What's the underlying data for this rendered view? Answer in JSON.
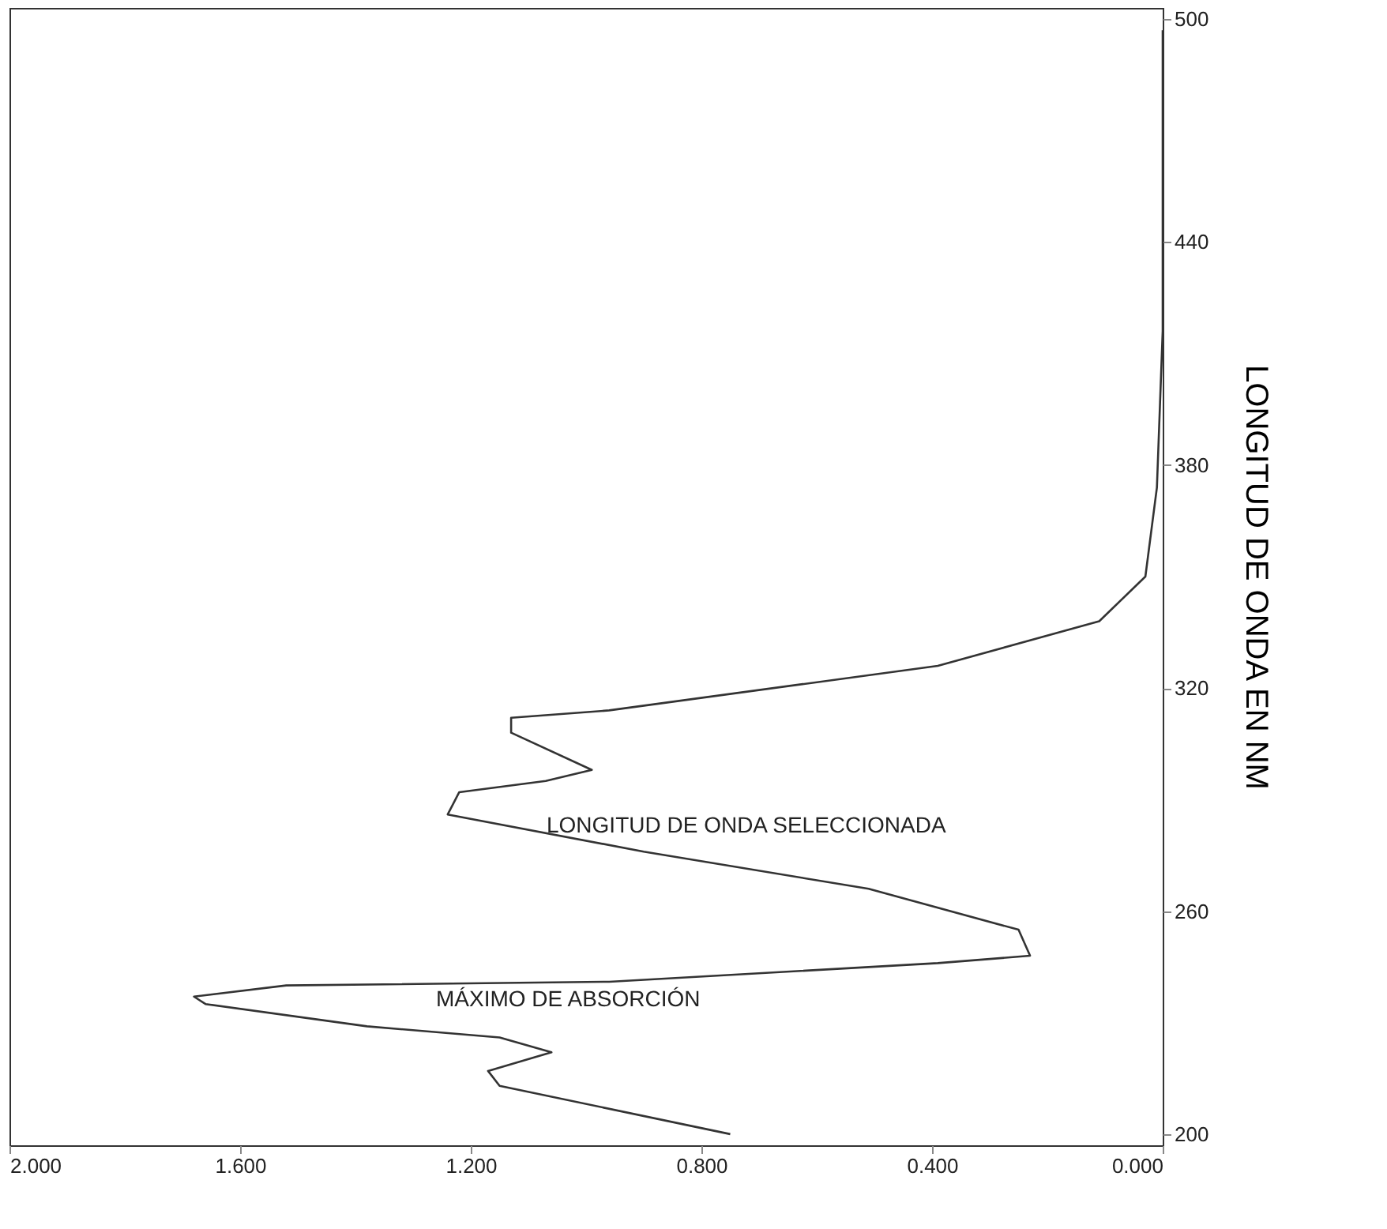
{
  "chart_data": {
    "type": "line",
    "ylabel": "LONGITUD DE ONDA EN NM",
    "x": [
      0.75,
      1.15,
      1.17,
      1.06,
      1.15,
      1.38,
      1.66,
      1.68,
      1.52,
      0.96,
      0.39,
      0.23,
      0.25,
      0.51,
      0.9,
      1.24,
      1.22,
      1.07,
      0.99,
      1.13,
      1.13,
      0.96,
      0.39,
      0.11,
      0.03,
      0.01,
      0.0,
      0.0
    ],
    "series": [
      {
        "color": "#333333",
        "values": [
          200,
          213,
          217,
          222,
          226,
          229,
          235,
          237,
          240,
          241,
          246,
          248,
          255,
          266,
          276,
          286,
          292,
          295,
          298,
          308,
          312,
          314,
          326,
          338,
          350,
          374,
          416,
          497
        ]
      }
    ],
    "xlim": [
      2.0,
      0.0
    ],
    "xticks": [
      {
        "value": 2.0,
        "label": "2.000"
      },
      {
        "value": 1.6,
        "label": "1.600"
      },
      {
        "value": 1.2,
        "label": "1.200"
      },
      {
        "value": 0.8,
        "label": "0.800"
      },
      {
        "value": 0.4,
        "label": "0.400"
      },
      {
        "value": 0.0,
        "label": "0.000"
      }
    ],
    "ylim": [
      197,
      503
    ],
    "yticks": [
      200,
      260,
      320,
      380,
      440,
      500
    ],
    "grid": false,
    "marker": "none",
    "line_style": "solid",
    "annotations": [
      "LONGITUD DE ONDA  SELECCIONADA",
      "MÁXIMO DE ABSORCIÓN"
    ]
  }
}
